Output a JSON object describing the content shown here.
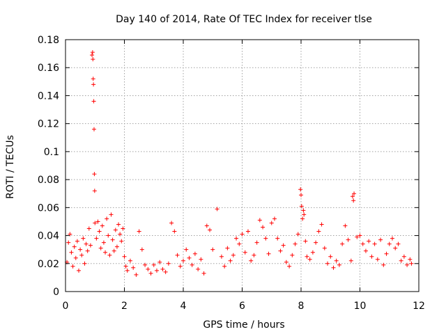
{
  "chart_data": {
    "type": "scatter",
    "title": "Day 140 of 2014, Rate Of TEC Index for receiver tlse",
    "xlabel": "GPS time / hours",
    "ylabel": "ROTI / TECUs",
    "xlim": [
      0,
      12
    ],
    "ylim": [
      0,
      0.18
    ],
    "x_ticks": [
      "0",
      "2",
      "4",
      "6",
      "8",
      "10",
      "12"
    ],
    "y_ticks": [
      "0",
      "0.02",
      "0.04",
      "0.06",
      "0.08",
      "0.1",
      "0.12",
      "0.14",
      "0.16",
      "0.18"
    ],
    "grid": true,
    "marker": "+",
    "series": [
      {
        "name": "ROTI",
        "color": "#ff0000",
        "x": [
          0.05,
          0.1,
          0.15,
          0.2,
          0.25,
          0.3,
          0.35,
          0.4,
          0.45,
          0.5,
          0.55,
          0.6,
          0.65,
          0.7,
          0.75,
          0.8,
          0.85,
          0.9,
          0.92,
          0.93,
          0.94,
          0.95,
          0.96,
          0.97,
          0.98,
          0.99,
          1.0,
          1.05,
          1.1,
          1.15,
          1.2,
          1.25,
          1.3,
          1.35,
          1.4,
          1.45,
          1.5,
          1.55,
          1.6,
          1.65,
          1.7,
          1.75,
          1.8,
          1.85,
          1.9,
          1.95,
          2.0,
          2.05,
          2.1,
          2.2,
          2.3,
          2.4,
          2.5,
          2.6,
          2.7,
          2.8,
          2.9,
          3.0,
          3.1,
          3.2,
          3.3,
          3.4,
          3.5,
          3.6,
          3.7,
          3.8,
          3.9,
          4.0,
          4.1,
          4.2,
          4.3,
          4.4,
          4.5,
          4.6,
          4.7,
          4.8,
          4.9,
          5.0,
          5.15,
          5.3,
          5.4,
          5.5,
          5.6,
          5.7,
          5.8,
          5.9,
          6.0,
          6.1,
          6.2,
          6.3,
          6.4,
          6.5,
          6.6,
          6.7,
          6.8,
          6.9,
          7.0,
          7.1,
          7.2,
          7.3,
          7.4,
          7.5,
          7.6,
          7.7,
          7.8,
          7.9,
          7.98,
          8.0,
          8.02,
          8.05,
          8.08,
          8.1,
          8.15,
          8.2,
          8.3,
          8.4,
          8.5,
          8.6,
          8.7,
          8.8,
          8.9,
          9.0,
          9.1,
          9.2,
          9.3,
          9.4,
          9.5,
          9.6,
          9.7,
          9.75,
          9.78,
          9.8,
          9.9,
          10.0,
          10.1,
          10.2,
          10.3,
          10.4,
          10.5,
          10.6,
          10.7,
          10.8,
          10.9,
          11.0,
          11.1,
          11.2,
          11.3,
          11.4,
          11.5,
          11.6,
          11.7,
          11.75
        ],
        "y": [
          0.021,
          0.035,
          0.041,
          0.028,
          0.018,
          0.032,
          0.024,
          0.036,
          0.015,
          0.03,
          0.026,
          0.038,
          0.02,
          0.034,
          0.029,
          0.045,
          0.033,
          0.169,
          0.171,
          0.166,
          0.152,
          0.148,
          0.136,
          0.116,
          0.084,
          0.072,
          0.049,
          0.038,
          0.05,
          0.043,
          0.031,
          0.047,
          0.035,
          0.028,
          0.052,
          0.04,
          0.026,
          0.055,
          0.037,
          0.029,
          0.044,
          0.032,
          0.048,
          0.041,
          0.036,
          0.045,
          0.025,
          0.018,
          0.015,
          0.022,
          0.017,
          0.012,
          0.043,
          0.03,
          0.019,
          0.016,
          0.013,
          0.019,
          0.015,
          0.021,
          0.016,
          0.014,
          0.02,
          0.049,
          0.043,
          0.026,
          0.018,
          0.022,
          0.03,
          0.024,
          0.019,
          0.027,
          0.016,
          0.023,
          0.013,
          0.047,
          0.044,
          0.03,
          0.059,
          0.025,
          0.018,
          0.031,
          0.022,
          0.026,
          0.038,
          0.034,
          0.041,
          0.028,
          0.043,
          0.022,
          0.026,
          0.035,
          0.051,
          0.046,
          0.038,
          0.027,
          0.049,
          0.052,
          0.038,
          0.029,
          0.033,
          0.021,
          0.018,
          0.026,
          0.034,
          0.041,
          0.073,
          0.069,
          0.061,
          0.052,
          0.058,
          0.055,
          0.036,
          0.025,
          0.023,
          0.028,
          0.035,
          0.043,
          0.048,
          0.031,
          0.02,
          0.025,
          0.017,
          0.022,
          0.019,
          0.034,
          0.047,
          0.037,
          0.022,
          0.068,
          0.065,
          0.07,
          0.039,
          0.04,
          0.034,
          0.029,
          0.036,
          0.025,
          0.034,
          0.023,
          0.037,
          0.019,
          0.027,
          0.034,
          0.038,
          0.031,
          0.034,
          0.022,
          0.025,
          0.019,
          0.023,
          0.02
        ]
      }
    ]
  }
}
